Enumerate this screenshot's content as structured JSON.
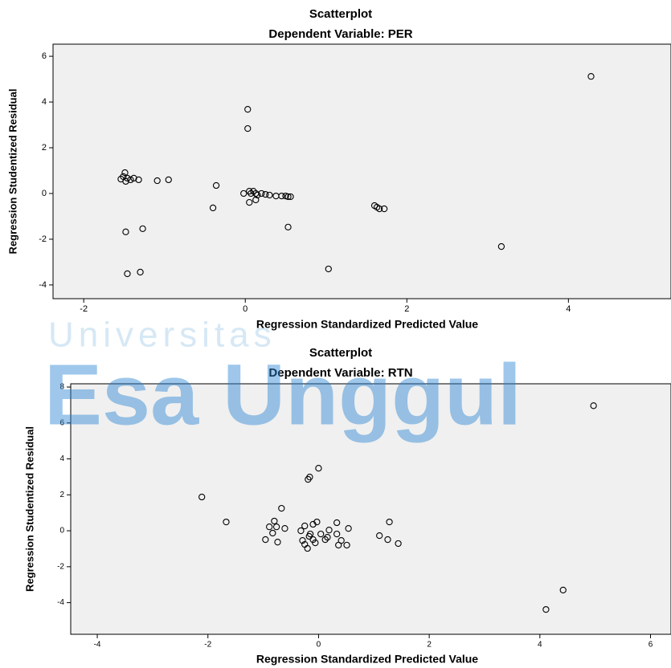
{
  "chart_data": [
    {
      "type": "scatter",
      "title": "Scatterplot",
      "subtitle": "Dependent Variable: PER",
      "xlabel": "Regression Standardized Predicted Value",
      "ylabel": "Regression Studentized Residual",
      "x": [
        4.28,
        0.03,
        0.03,
        -1.49,
        -1.51,
        -1.54,
        -1.46,
        -1.42,
        -1.38,
        -1.32,
        -1.48,
        -1.09,
        -0.95,
        -0.36,
        -0.4,
        -1.48,
        -1.27,
        -1.46,
        -1.3,
        -0.02,
        0.05,
        0.07,
        0.1,
        0.13,
        0.15,
        0.2,
        0.25,
        0.3,
        0.38,
        0.45,
        0.5,
        0.53,
        0.56,
        0.05,
        0.13,
        0.53,
        1.03,
        1.63,
        1.66,
        1.72,
        1.6,
        3.17
      ],
      "y": [
        5.12,
        3.68,
        2.84,
        0.91,
        0.74,
        0.63,
        0.67,
        0.6,
        0.67,
        0.6,
        0.53,
        0.56,
        0.6,
        0.35,
        -0.63,
        -1.68,
        -1.54,
        -3.51,
        -3.44,
        0,
        0.1,
        0,
        0.1,
        0,
        -0.07,
        0,
        -0.04,
        -0.07,
        -0.11,
        -0.11,
        -0.11,
        -0.14,
        -0.14,
        -0.39,
        -0.28,
        -1.47,
        -3.3,
        -0.6,
        -0.67,
        -0.67,
        -0.53,
        -2.32
      ],
      "xlim": [
        -2.38,
        5.27
      ],
      "ylim": [
        -4.6,
        6.53
      ],
      "xticks": [
        -2,
        0,
        2,
        4
      ],
      "yticks": [
        -4,
        -2,
        0,
        2,
        4,
        6
      ],
      "color": "#000000",
      "background": "#f0f0f0"
    },
    {
      "type": "scatter",
      "title": "Scatterplot",
      "subtitle": "Dependent Variable: RTN",
      "xlabel": "Regression Standardized Predicted Value",
      "ylabel": "Regression Studentized Residual",
      "x": [
        4.97,
        0,
        -0.16,
        -0.19,
        -2.11,
        -0.67,
        -1.67,
        1.28,
        0.33,
        -0.8,
        -0.96,
        -0.74,
        1.1,
        1.25,
        1.44,
        4.11,
        4.42,
        0.54,
        0.33,
        0.41,
        0.51,
        0.36,
        0.16,
        -0.1,
        -0.25,
        -0.2,
        -0.32,
        -0.25,
        -0.1,
        -0.03,
        -0.15,
        0.04,
        0.19,
        0.12,
        -0.06,
        -0.17,
        -0.29,
        -0.89,
        -0.76,
        -0.61,
        -0.83
      ],
      "y": [
        6.96,
        3.48,
        2.99,
        2.86,
        1.88,
        1.25,
        0.49,
        0.49,
        0.45,
        0.54,
        -0.49,
        -0.63,
        -0.27,
        -0.49,
        -0.71,
        -4.38,
        -3.3,
        0.13,
        -0.18,
        -0.54,
        -0.8,
        -0.8,
        -0.36,
        -0.49,
        -0.76,
        -0.98,
        0,
        0.27,
        0.36,
        0.49,
        -0.18,
        -0.18,
        0.04,
        -0.49,
        -0.67,
        -0.31,
        -0.54,
        0.22,
        0.22,
        0.13,
        -0.13
      ],
      "xlim": [
        -4.48,
        6.37
      ],
      "ylim": [
        -5.76,
        8.18
      ],
      "xticks": [
        -4,
        -2,
        0,
        2,
        4,
        6
      ],
      "yticks": [
        -4,
        -2,
        0,
        2,
        4,
        6,
        8
      ],
      "color": "#000000",
      "background": "#f0f0f0"
    }
  ],
  "watermark": {
    "line1": "Universitas",
    "line2": "Esa Unggul"
  }
}
